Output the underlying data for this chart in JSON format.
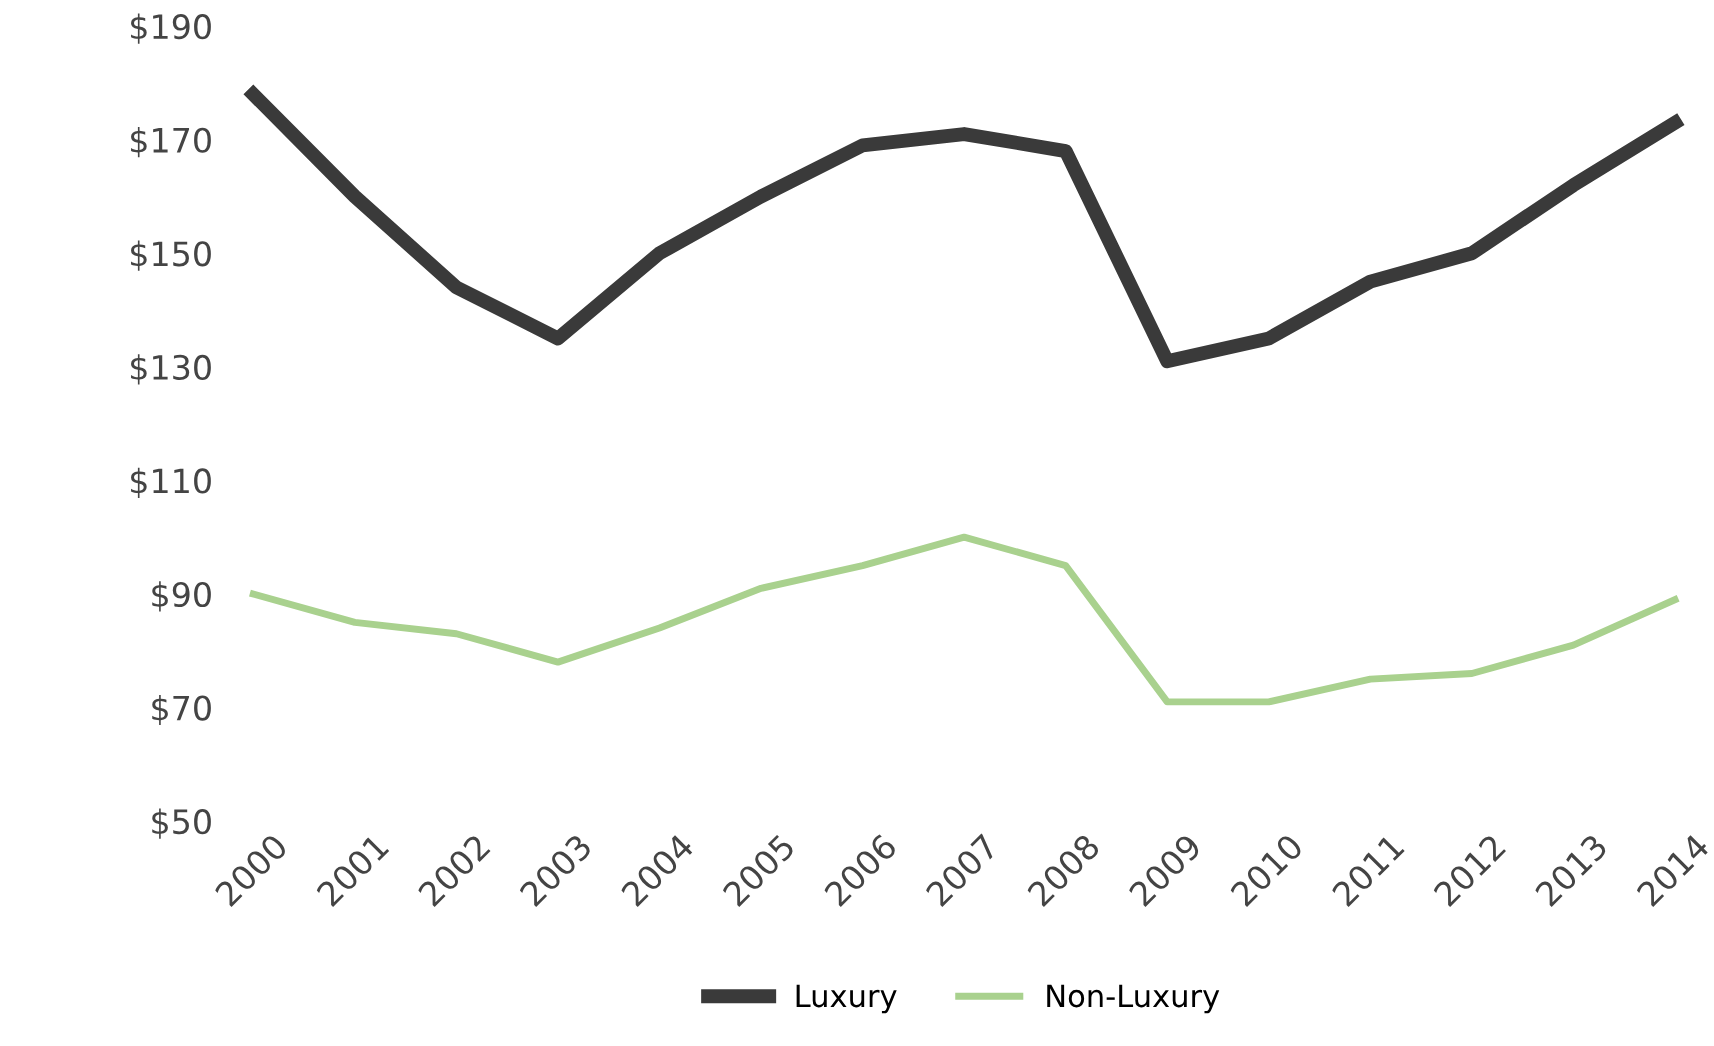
{
  "chart_data": {
    "type": "line",
    "categories": [
      "2000",
      "2001",
      "2002",
      "2003",
      "2004",
      "2005",
      "2006",
      "2007",
      "2008",
      "2009",
      "2010",
      "2011",
      "2012",
      "2013",
      "2014"
    ],
    "series": [
      {
        "name": "Luxury",
        "color": "#3a3a3a",
        "values": [
          178,
          160,
          144,
          135,
          150,
          160,
          169,
          171,
          168,
          131,
          135,
          145,
          150,
          162,
          173
        ]
      },
      {
        "name": "Non-Luxury",
        "color": "#a9d18e",
        "values": [
          90,
          85,
          83,
          78,
          84,
          91,
          95,
          100,
          95,
          71,
          71,
          75,
          76,
          81,
          89
        ]
      }
    ],
    "ylim": [
      50,
      190
    ],
    "yticks": [
      {
        "value": 50,
        "label": "$50"
      },
      {
        "value": 70,
        "label": "$70"
      },
      {
        "value": 90,
        "label": "$90"
      },
      {
        "value": 110,
        "label": "$110"
      },
      {
        "value": 130,
        "label": "$130"
      },
      {
        "value": 150,
        "label": "$150"
      },
      {
        "value": 170,
        "label": "$170"
      },
      {
        "value": 190,
        "label": "$190"
      }
    ],
    "grid": false,
    "legend": "bottom",
    "marker": "none"
  }
}
